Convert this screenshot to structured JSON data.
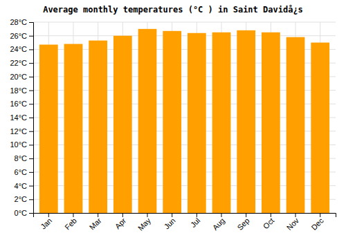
{
  "chart_data": {
    "type": "bar",
    "title": "Average monthly temperatures (°C ) in Saint Davidå¿s",
    "categories": [
      "Jan",
      "Feb",
      "Mar",
      "Apr",
      "May",
      "Jun",
      "Jul",
      "Aug",
      "Sep",
      "Oct",
      "Nov",
      "Dec"
    ],
    "values": [
      24.7,
      24.8,
      25.3,
      26.0,
      27.0,
      26.7,
      26.4,
      26.5,
      26.8,
      26.5,
      25.8,
      25.0
    ],
    "color": "#FFA000",
    "ylim": [
      0,
      28
    ],
    "yticks": [
      {
        "value": 0,
        "label": "0°C"
      },
      {
        "value": 2,
        "label": "2°C"
      },
      {
        "value": 4,
        "label": "4°C"
      },
      {
        "value": 6,
        "label": "6°C"
      },
      {
        "value": 8,
        "label": "8°C"
      },
      {
        "value": 10,
        "label": "10°C"
      },
      {
        "value": 12,
        "label": "12°C"
      },
      {
        "value": 14,
        "label": "14°C"
      },
      {
        "value": 16,
        "label": "16°C"
      },
      {
        "value": 18,
        "label": "18°C"
      },
      {
        "value": 20,
        "label": "20°C"
      },
      {
        "value": 22,
        "label": "22°C"
      },
      {
        "value": 24,
        "label": "24°C"
      },
      {
        "value": 26,
        "label": "26°C"
      },
      {
        "value": 28,
        "label": "28°C"
      }
    ],
    "grid": true
  }
}
